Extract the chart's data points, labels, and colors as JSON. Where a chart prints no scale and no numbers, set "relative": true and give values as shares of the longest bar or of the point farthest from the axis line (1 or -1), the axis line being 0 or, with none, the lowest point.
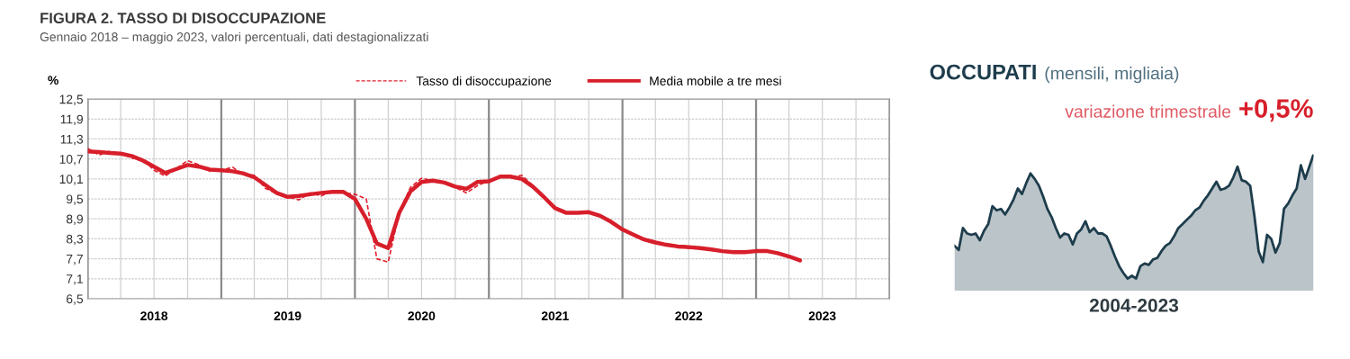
{
  "chart_data": [
    {
      "type": "line",
      "title": "FIGURA 2. TASSO DI DISOCCUPAZIONE",
      "subtitle": "Gennaio 2018 – maggio 2023, valori percentuali, dati destagionalizzati",
      "ylabel": "%",
      "x": [
        "2018-01",
        "2018-02",
        "2018-03",
        "2018-04",
        "2018-05",
        "2018-06",
        "2018-07",
        "2018-08",
        "2018-09",
        "2018-10",
        "2018-11",
        "2018-12",
        "2019-01",
        "2019-02",
        "2019-03",
        "2019-04",
        "2019-05",
        "2019-06",
        "2019-07",
        "2019-08",
        "2019-09",
        "2019-10",
        "2019-11",
        "2019-12",
        "2020-01",
        "2020-02",
        "2020-03",
        "2020-04",
        "2020-05",
        "2020-06",
        "2020-07",
        "2020-08",
        "2020-09",
        "2020-10",
        "2020-11",
        "2020-12",
        "2021-01",
        "2021-02",
        "2021-03",
        "2021-04",
        "2021-05",
        "2021-06",
        "2021-07",
        "2021-08",
        "2021-09",
        "2021-10",
        "2021-11",
        "2021-12",
        "2022-01",
        "2022-02",
        "2022-03",
        "2022-04",
        "2022-05",
        "2022-06",
        "2022-07",
        "2022-08",
        "2022-09",
        "2022-10",
        "2022-11",
        "2022-12",
        "2023-01",
        "2023-02",
        "2023-03",
        "2023-04",
        "2023-05"
      ],
      "xlim": [
        "2018-01-01",
        "2024-01-01"
      ],
      "xticks": [
        {
          "value": "2018-01-01",
          "label": null
        },
        {
          "value": "2018-04-01",
          "label": null
        },
        {
          "value": "2018-07-01",
          "label": "2018"
        },
        {
          "value": "2018-10-01",
          "label": null
        },
        {
          "value": "2019-01-01",
          "label": null
        },
        {
          "value": "2019-04-01",
          "label": null
        },
        {
          "value": "2019-07-01",
          "label": "2019"
        },
        {
          "value": "2019-10-01",
          "label": null
        },
        {
          "value": "2020-01-01",
          "label": null
        },
        {
          "value": "2020-04-01",
          "label": null
        },
        {
          "value": "2020-07-01",
          "label": "2020"
        },
        {
          "value": "2020-10-01",
          "label": null
        },
        {
          "value": "2021-01-01",
          "label": null
        },
        {
          "value": "2021-04-01",
          "label": null
        },
        {
          "value": "2021-07-01",
          "label": "2021"
        },
        {
          "value": "2021-10-01",
          "label": null
        },
        {
          "value": "2022-01-01",
          "label": null
        },
        {
          "value": "2022-04-01",
          "label": null
        },
        {
          "value": "2022-07-01",
          "label": "2022"
        },
        {
          "value": "2022-10-01",
          "label": null
        },
        {
          "value": "2023-01-01",
          "label": null
        },
        {
          "value": "2023-04-01",
          "label": null
        },
        {
          "value": "2023-07-01",
          "label": "2023"
        },
        {
          "value": "2023-10-01",
          "label": null
        },
        {
          "value": "2024-01-01",
          "label": null
        }
      ],
      "ylim": [
        6.5,
        12.5
      ],
      "yticks": [
        {
          "value": 6.5,
          "label": "6,5"
        },
        {
          "value": 7.1,
          "label": "7,1"
        },
        {
          "value": 7.7,
          "label": "7,7"
        },
        {
          "value": 8.3,
          "label": "8,3"
        },
        {
          "value": 8.9,
          "label": "8,9"
        },
        {
          "value": 9.5,
          "label": "9,5"
        },
        {
          "value": 10.1,
          "label": "10,1"
        },
        {
          "value": 10.7,
          "label": "10,7"
        },
        {
          "value": 11.3,
          "label": "11,3"
        },
        {
          "value": 11.9,
          "label": "11,9"
        },
        {
          "value": 12.5,
          "label": "12,5"
        }
      ],
      "grid": true,
      "legend": "top",
      "series": [
        {
          "name": "Tasso di disoccupazione",
          "color": "#e0202e",
          "line_style": "dashed",
          "values": [
            11.02,
            10.82,
            10.93,
            10.86,
            10.73,
            10.7,
            10.36,
            10.19,
            10.42,
            10.65,
            10.52,
            10.33,
            10.36,
            10.45,
            10.24,
            10.21,
            9.82,
            9.66,
            9.56,
            9.47,
            9.68,
            9.59,
            9.75,
            9.68,
            9.64,
            9.5,
            7.7,
            7.6,
            9.1,
            9.85,
            10.12,
            10.05,
            9.99,
            9.85,
            9.68,
            9.9,
            10.05,
            10.2,
            10.15,
            10.21,
            9.9,
            9.55,
            9.22,
            9.08,
            9.08,
            9.1,
            8.99,
            8.81,
            8.58,
            8.42,
            8.28,
            8.19,
            8.12,
            8.07,
            8.05,
            8.02,
            7.98,
            7.93,
            7.9,
            7.9,
            7.93,
            7.93,
            7.87,
            7.77,
            7.65
          ]
        },
        {
          "name": "Media mobile a tre mesi",
          "color": "#d71f2b",
          "line_style": "solid",
          "values": [
            10.93,
            10.91,
            10.88,
            10.86,
            10.79,
            10.65,
            10.47,
            10.28,
            10.4,
            10.52,
            10.47,
            10.38,
            10.36,
            10.33,
            10.27,
            10.15,
            9.92,
            9.68,
            9.56,
            9.59,
            9.64,
            9.68,
            9.71,
            9.71,
            9.5,
            8.9,
            8.16,
            8.02,
            9.08,
            9.73,
            10.01,
            10.05,
            9.99,
            9.87,
            9.8,
            10.01,
            10.03,
            10.17,
            10.17,
            10.1,
            9.87,
            9.55,
            9.22,
            9.08,
            9.08,
            9.1,
            8.99,
            8.81,
            8.58,
            8.42,
            8.28,
            8.19,
            8.12,
            8.07,
            8.05,
            8.02,
            7.98,
            7.93,
            7.9,
            7.9,
            7.93,
            7.93,
            7.87,
            7.77,
            7.65
          ]
        }
      ]
    },
    {
      "type": "area",
      "title": "OCCUPATI",
      "subtitle": "(mensili, migliaia)",
      "xlabel": "2004-2023",
      "annotations": [
        "variazione trimestrale",
        "+0,5%"
      ],
      "relative": true,
      "categories": [
        null,
        null,
        null,
        null,
        null,
        null,
        null,
        null,
        null,
        null,
        null,
        null,
        null,
        null,
        null,
        null,
        null,
        null,
        null,
        null,
        null,
        null,
        null,
        null,
        null,
        null,
        null,
        null,
        null,
        null,
        null,
        null,
        null,
        null,
        null,
        null,
        null,
        null,
        null,
        null,
        null,
        null,
        null,
        null,
        null,
        null,
        null,
        null,
        null,
        null,
        null,
        null,
        null,
        null,
        null,
        null,
        null,
        null,
        null,
        null,
        null,
        null,
        null,
        null,
        null,
        null,
        null,
        null,
        null,
        null,
        null,
        null,
        null,
        null,
        null,
        null,
        null,
        null,
        null,
        null,
        null,
        null,
        null,
        null,
        null,
        null
      ],
      "series": [
        {
          "color": "#1e3d4c",
          "values": [
            0.33,
            0.3,
            0.46,
            0.42,
            0.41,
            0.42,
            0.37,
            0.44,
            0.49,
            0.62,
            0.59,
            0.6,
            0.56,
            0.61,
            0.67,
            0.75,
            0.71,
            0.79,
            0.86,
            0.82,
            0.77,
            0.69,
            0.6,
            0.54,
            0.46,
            0.39,
            0.42,
            0.41,
            0.34,
            0.42,
            0.45,
            0.51,
            0.43,
            0.46,
            0.42,
            0.42,
            0.4,
            0.33,
            0.25,
            0.18,
            0.13,
            0.09,
            0.11,
            0.09,
            0.18,
            0.2,
            0.19,
            0.23,
            0.24,
            0.29,
            0.33,
            0.35,
            0.4,
            0.46,
            0.49,
            0.52,
            0.55,
            0.59,
            0.61,
            0.66,
            0.7,
            0.75,
            0.8,
            0.74,
            0.75,
            0.77,
            0.83,
            0.91,
            0.81,
            0.8,
            0.77,
            0.55,
            0.29,
            0.21,
            0.41,
            0.38,
            0.28,
            0.35,
            0.6,
            0.64,
            0.7,
            0.75,
            0.92,
            0.82,
            0.91,
            1
          ]
        }
      ]
    }
  ]
}
